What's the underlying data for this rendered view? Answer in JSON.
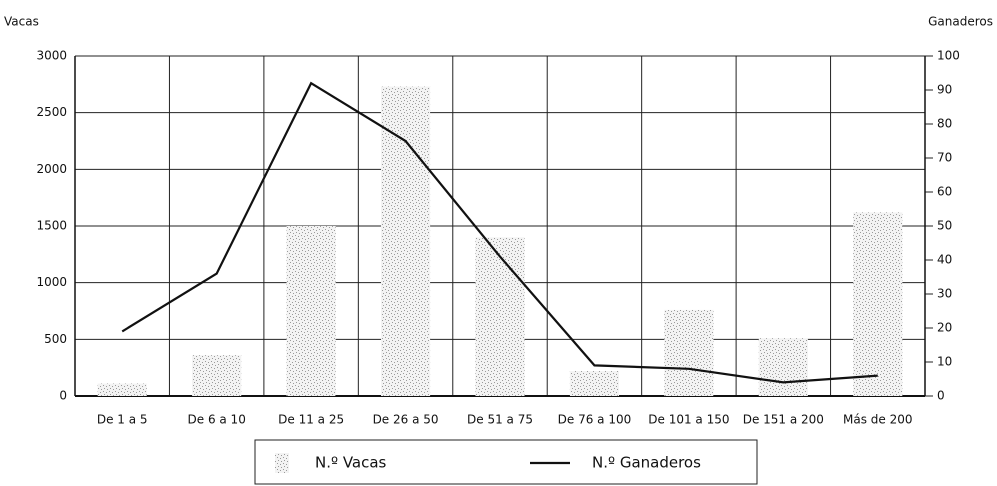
{
  "chart_data": {
    "type": "bar_line",
    "y_label": "Vacas",
    "y2_label": "Ganaderos",
    "categories": [
      "De 1 a 5",
      "De 6 a 10",
      "De 11 a 25",
      "De 26 a 50",
      "De 51 a 75",
      "De 76 a 100",
      "De 101 a 150",
      "De 151 a 200",
      "Más de 200"
    ],
    "series": [
      {
        "name": "N.º Vacas",
        "type": "bar",
        "color": "#9a9a9a",
        "values": [
          110,
          360,
          1500,
          2730,
          1400,
          220,
          760,
          510,
          1620
        ]
      },
      {
        "name": "N.º Ganaderos",
        "type": "line",
        "axis": "y2",
        "color": "#111111",
        "values": [
          19,
          36,
          92,
          75,
          41,
          9,
          8,
          4,
          6
        ]
      }
    ],
    "ylim": [
      0,
      3000
    ],
    "yticks": [
      0,
      500,
      1000,
      1500,
      2000,
      2500,
      3000
    ],
    "y2lim": [
      0,
      100
    ],
    "y2ticks": [
      0,
      10,
      20,
      30,
      40,
      50,
      60,
      70,
      80,
      90,
      100
    ],
    "grid": true,
    "legend": "bottom"
  }
}
